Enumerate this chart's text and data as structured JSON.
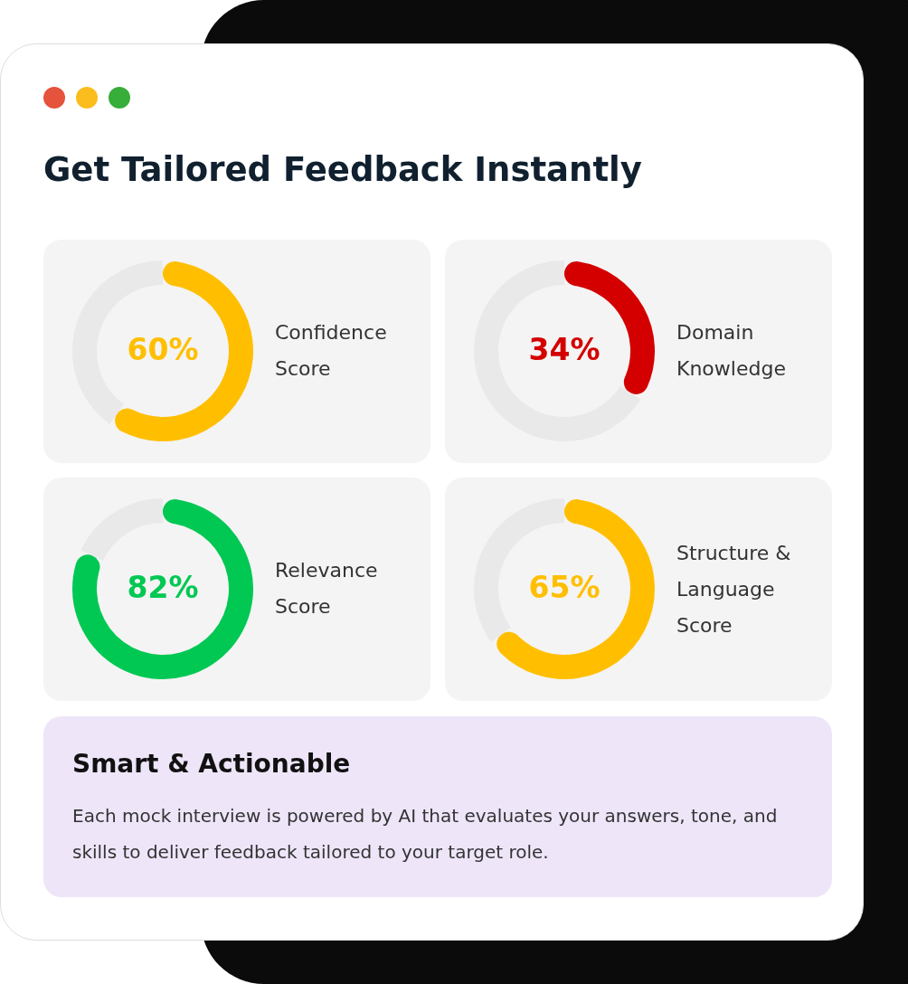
{
  "chart_data": [
    {
      "type": "other",
      "title": "Get Tailored Feedback Instantly"
    },
    {
      "type": "donut",
      "title": "Confidence Score",
      "categories": [
        null,
        null
      ],
      "values": [
        60,
        40
      ],
      "colors": [
        "#ffbf00",
        "#e9e9e9"
      ],
      "value_labels": [
        "60%",
        null
      ]
    },
    {
      "type": "donut",
      "title": "Domain Knowledge",
      "categories": [
        null,
        null
      ],
      "values": [
        34,
        66
      ],
      "colors": [
        "#d40000",
        "#e9e9e9"
      ],
      "value_labels": [
        "34%",
        null
      ]
    },
    {
      "type": "donut",
      "title": "Relevance Score",
      "categories": [
        null,
        null
      ],
      "values": [
        82,
        18
      ],
      "colors": [
        "#00c853",
        "#e9e9e9"
      ],
      "value_labels": [
        "82%",
        null
      ]
    },
    {
      "type": "donut",
      "title": "Structure & Language Score",
      "categories": [
        null,
        null
      ],
      "values": [
        65,
        35
      ],
      "colors": [
        "#ffbf00",
        "#e9e9e9"
      ],
      "value_labels": [
        "65%",
        null
      ]
    },
    {
      "type": "other",
      "title": "Smart & Actionable",
      "annotations": [
        "Each mock interview is powered by AI that evaluates your answers, tone, and skills to deliver feedback tailored to your target role."
      ]
    }
  ]
}
